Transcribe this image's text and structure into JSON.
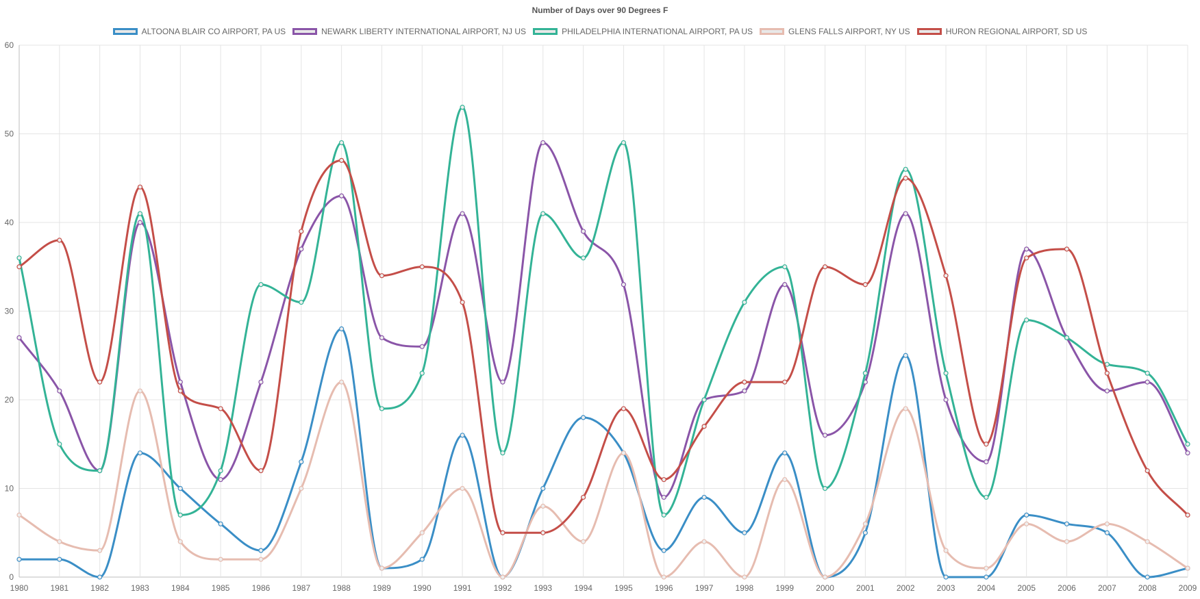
{
  "chart_data": {
    "type": "line",
    "title": "Number of Days over 90 Degrees F",
    "xlabel": "",
    "ylabel": "",
    "ylim": [
      0,
      60
    ],
    "yticks": [
      0,
      10,
      20,
      30,
      40,
      50,
      60
    ],
    "grid": true,
    "legend_position": "top",
    "categories": [
      "1980",
      "1981",
      "1982",
      "1983",
      "1984",
      "1985",
      "1986",
      "1987",
      "1988",
      "1989",
      "1990",
      "1991",
      "1992",
      "1993",
      "1994",
      "1995",
      "1996",
      "1997",
      "1998",
      "1999",
      "2000",
      "2001",
      "2002",
      "2003",
      "2004",
      "2005",
      "2006",
      "2007",
      "2008",
      "2009"
    ],
    "series": [
      {
        "name": "ALTOONA BLAIR CO AIRPORT, PA US",
        "color": "#3a8ec6",
        "values": [
          2,
          2,
          0,
          14,
          10,
          6,
          3,
          13,
          28,
          1,
          2,
          16,
          0,
          10,
          18,
          14,
          3,
          9,
          5,
          14,
          0,
          5,
          25,
          0,
          0,
          7,
          6,
          5,
          0,
          1
        ]
      },
      {
        "name": "NEWARK LIBERTY INTERNATIONAL AIRPORT, NJ US",
        "color": "#8a55a8",
        "values": [
          27,
          21,
          12,
          40,
          22,
          11,
          22,
          37,
          43,
          27,
          26,
          41,
          22,
          49,
          39,
          33,
          9,
          20,
          21,
          33,
          16,
          22,
          41,
          20,
          13,
          37,
          27,
          21,
          22,
          14
        ]
      },
      {
        "name": "PHILADELPHIA INTERNATIONAL AIRPORT, PA US",
        "color": "#33b396",
        "values": [
          36,
          15,
          12,
          41,
          7,
          12,
          33,
          31,
          49,
          19,
          23,
          53,
          14,
          41,
          36,
          49,
          7,
          20,
          31,
          35,
          10,
          23,
          46,
          23,
          9,
          29,
          27,
          24,
          23,
          15
        ]
      },
      {
        "name": "GLENS FALLS AIRPORT, NY US",
        "color": "#e6bcb0",
        "values": [
          7,
          4,
          3,
          21,
          4,
          2,
          2,
          10,
          22,
          1,
          5,
          10,
          0,
          8,
          4,
          14,
          0,
          4,
          0,
          11,
          0,
          6,
          19,
          3,
          1,
          6,
          4,
          6,
          4,
          1
        ]
      },
      {
        "name": "HURON REGIONAL AIRPORT, SD US",
        "color": "#c44e48",
        "values": [
          35,
          38,
          22,
          44,
          21,
          19,
          12,
          39,
          47,
          34,
          35,
          31,
          5,
          5,
          9,
          19,
          11,
          17,
          22,
          22,
          35,
          33,
          45,
          34,
          15,
          36,
          37,
          23,
          12,
          7
        ]
      }
    ]
  }
}
